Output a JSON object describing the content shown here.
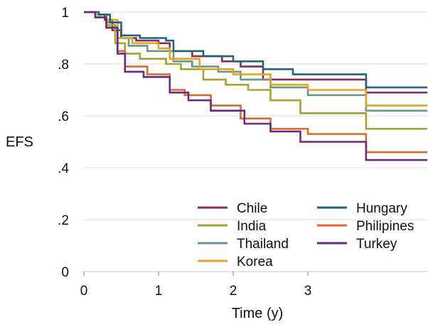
{
  "chart_data": {
    "type": "line",
    "step": true,
    "xlabel": "Time (y)",
    "ylabel": "EFS",
    "xlim": [
      0,
      4.6
    ],
    "ylim": [
      0,
      1.0
    ],
    "x_ticks": [
      {
        "value": 0,
        "label": "0"
      },
      {
        "value": 1,
        "label": "1"
      },
      {
        "value": 2,
        "label": "2"
      },
      {
        "value": 3,
        "label": "3"
      }
    ],
    "y_ticks": [
      {
        "value": 0,
        "label": "0"
      },
      {
        "value": 0.2,
        "label": ".2"
      },
      {
        "value": 0.4,
        "label": ".4"
      },
      {
        "value": 0.6,
        "label": ".6"
      },
      {
        "value": 0.8,
        "label": ".8"
      },
      {
        "value": 1.0,
        "label": "1"
      }
    ],
    "grid": "horizontal",
    "legend_position": "bottom-right",
    "series": [
      {
        "name": "Chile",
        "color": "#8B2A5E",
        "x": [
          0,
          0.15,
          0.28,
          0.38,
          0.5,
          0.7,
          1.0,
          1.15,
          1.45,
          1.85,
          2.1,
          2.4,
          3.78
        ],
        "y": [
          1.0,
          0.99,
          0.97,
          0.93,
          0.9,
          0.89,
          0.88,
          0.85,
          0.83,
          0.81,
          0.79,
          0.74,
          0.69
        ]
      },
      {
        "name": "India",
        "color": "#A3A232",
        "x": [
          0,
          0.15,
          0.3,
          0.42,
          0.55,
          0.75,
          1.1,
          1.3,
          1.6,
          1.9,
          2.2,
          2.5,
          2.9,
          3.78
        ],
        "y": [
          1.0,
          0.98,
          0.95,
          0.88,
          0.84,
          0.82,
          0.8,
          0.78,
          0.74,
          0.72,
          0.7,
          0.66,
          0.61,
          0.55
        ]
      },
      {
        "name": "Thailand",
        "color": "#6E9680",
        "x": [
          0,
          0.15,
          0.3,
          0.45,
          0.6,
          0.85,
          1.2,
          1.45,
          1.8,
          2.1,
          2.5,
          3.0,
          3.78
        ],
        "y": [
          1.0,
          0.99,
          0.96,
          0.9,
          0.87,
          0.85,
          0.81,
          0.79,
          0.77,
          0.74,
          0.71,
          0.68,
          0.62
        ]
      },
      {
        "name": "Korea",
        "color": "#E0A52A",
        "x": [
          0,
          0.15,
          0.3,
          0.45,
          0.65,
          1.0,
          1.15,
          1.55,
          2.0,
          2.5,
          3.0,
          3.78
        ],
        "y": [
          1.0,
          0.99,
          0.97,
          0.9,
          0.88,
          0.86,
          0.82,
          0.78,
          0.76,
          0.72,
          0.7,
          0.64
        ]
      },
      {
        "name": "Hungary",
        "color": "#206578",
        "x": [
          0,
          0.2,
          0.35,
          0.5,
          0.75,
          1.1,
          1.2,
          1.6,
          2.0,
          2.4,
          2.8,
          3.78
        ],
        "y": [
          1.0,
          0.99,
          0.96,
          0.91,
          0.9,
          0.89,
          0.85,
          0.83,
          0.81,
          0.78,
          0.76,
          0.71
        ]
      },
      {
        "name": "Philipines",
        "color": "#D86A33",
        "x": [
          0,
          0.15,
          0.3,
          0.45,
          0.55,
          0.85,
          1.15,
          1.35,
          1.7,
          2.1,
          2.5,
          3.0,
          3.78
        ],
        "y": [
          1.0,
          0.98,
          0.94,
          0.85,
          0.79,
          0.76,
          0.7,
          0.68,
          0.64,
          0.59,
          0.55,
          0.53,
          0.46
        ]
      },
      {
        "name": "Turkey",
        "color": "#6A2A7E",
        "x": [
          0,
          0.15,
          0.3,
          0.45,
          0.55,
          0.8,
          1.15,
          1.4,
          1.7,
          2.15,
          2.5,
          2.9,
          3.78
        ],
        "y": [
          1.0,
          0.98,
          0.94,
          0.84,
          0.77,
          0.75,
          0.69,
          0.66,
          0.62,
          0.57,
          0.54,
          0.5,
          0.43
        ]
      }
    ],
    "legend_columns": [
      [
        "Chile",
        "India",
        "Thailand",
        "Korea"
      ],
      [
        "Hungary",
        "Philipines",
        "Turkey"
      ]
    ]
  }
}
